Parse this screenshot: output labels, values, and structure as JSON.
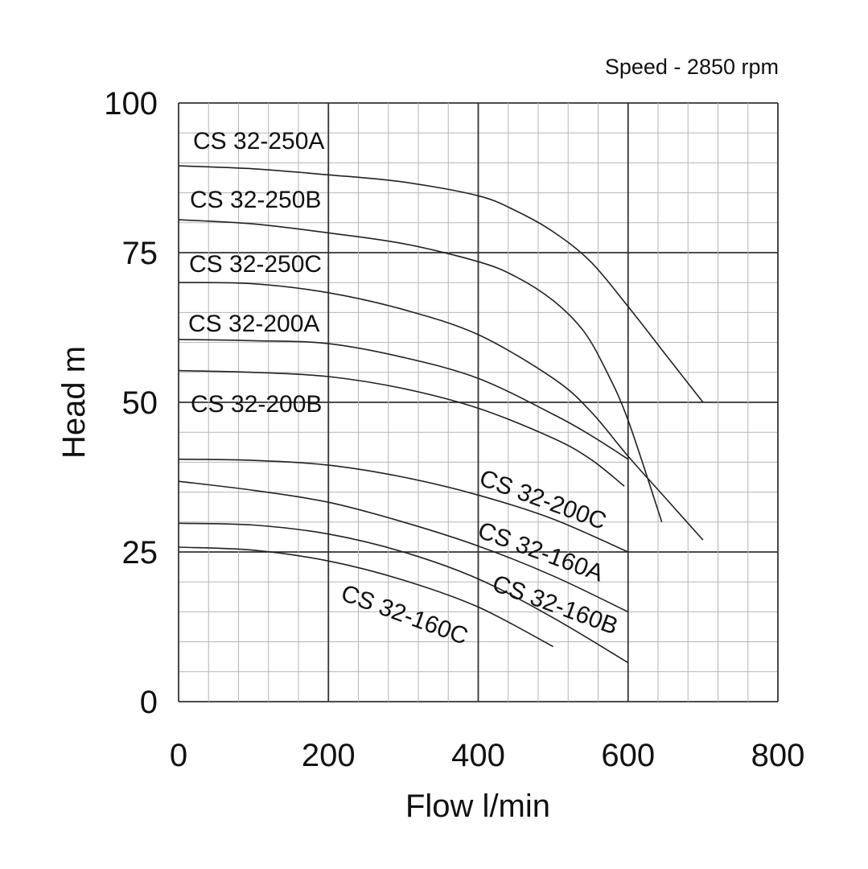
{
  "chart_data": {
    "type": "line",
    "note": "Speed - 2850 rpm",
    "xlabel": "Flow l/min",
    "ylabel": "Head m",
    "xlim": [
      0,
      800
    ],
    "ylim": [
      0,
      100
    ],
    "x_ticks": [
      "0",
      "200",
      "400",
      "600",
      "800"
    ],
    "y_ticks": [
      "0",
      "25",
      "50",
      "75",
      "100"
    ],
    "grid": true,
    "legend": "none (series labels printed on chart)",
    "series": [
      {
        "name": "CS 32-250A",
        "points": [
          [
            0,
            89.5
          ],
          [
            100,
            89
          ],
          [
            200,
            88
          ],
          [
            300,
            86.8
          ],
          [
            400,
            84.5
          ],
          [
            450,
            82
          ],
          [
            500,
            78.5
          ],
          [
            550,
            73.5
          ],
          [
            600,
            66
          ],
          [
            650,
            58
          ],
          [
            700,
            50
          ]
        ]
      },
      {
        "name": "CS 32-250B",
        "points": [
          [
            0,
            80.5
          ],
          [
            100,
            79.8
          ],
          [
            200,
            78.3
          ],
          [
            300,
            76.5
          ],
          [
            400,
            73.5
          ],
          [
            450,
            71
          ],
          [
            500,
            67
          ],
          [
            540,
            62
          ],
          [
            570,
            55.5
          ],
          [
            600,
            47
          ],
          [
            645,
            30
          ]
        ]
      },
      {
        "name": "CS 32-250C",
        "points": [
          [
            0,
            70
          ],
          [
            100,
            69.8
          ],
          [
            200,
            68.3
          ],
          [
            300,
            65.5
          ],
          [
            400,
            61.3
          ],
          [
            500,
            54
          ],
          [
            550,
            48.5
          ],
          [
            600,
            41
          ],
          [
            650,
            34
          ],
          [
            700,
            27
          ]
        ]
      },
      {
        "name": "CS 32-200A",
        "points": [
          [
            0,
            60.5
          ],
          [
            100,
            60.3
          ],
          [
            200,
            59.8
          ],
          [
            300,
            57.5
          ],
          [
            400,
            54
          ],
          [
            500,
            48
          ],
          [
            550,
            44.5
          ],
          [
            600,
            40.5
          ]
        ]
      },
      {
        "name": "CS 32-200B",
        "points": [
          [
            0,
            55.3
          ],
          [
            100,
            55
          ],
          [
            200,
            54.3
          ],
          [
            300,
            52.3
          ],
          [
            400,
            49
          ],
          [
            500,
            44
          ],
          [
            550,
            40.5
          ],
          [
            595,
            36
          ]
        ]
      },
      {
        "name": "CS 32-200C",
        "points": [
          [
            0,
            40.5
          ],
          [
            100,
            40.3
          ],
          [
            200,
            39.5
          ],
          [
            300,
            37.5
          ],
          [
            400,
            34.5
          ],
          [
            500,
            30.5
          ],
          [
            600,
            25
          ]
        ]
      },
      {
        "name": "CS 32-160A",
        "points": [
          [
            0,
            36.8
          ],
          [
            100,
            35.3
          ],
          [
            200,
            33.3
          ],
          [
            300,
            30
          ],
          [
            400,
            26
          ],
          [
            500,
            21
          ],
          [
            600,
            15
          ]
        ]
      },
      {
        "name": "CS 32-160B",
        "points": [
          [
            0,
            29.8
          ],
          [
            100,
            29.5
          ],
          [
            200,
            28
          ],
          [
            300,
            25
          ],
          [
            400,
            20.5
          ],
          [
            500,
            14
          ],
          [
            600,
            6.5
          ]
        ]
      },
      {
        "name": "CS 32-160C",
        "points": [
          [
            0,
            25.8
          ],
          [
            100,
            25.3
          ],
          [
            200,
            23.5
          ],
          [
            300,
            20.3
          ],
          [
            400,
            15.8
          ],
          [
            500,
            9.2
          ]
        ]
      }
    ]
  }
}
